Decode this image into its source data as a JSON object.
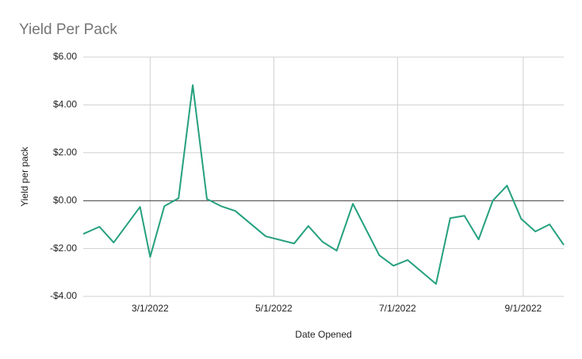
{
  "chart_data": {
    "type": "line",
    "title": "Yield Per Pack",
    "x_label": "Date Opened",
    "y_label": "Yield per pack",
    "x": [
      "2022-01-27",
      "2022-02-04",
      "2022-02-11",
      "2022-02-24",
      "2022-03-01",
      "2022-03-08",
      "2022-03-15",
      "2022-03-22",
      "2022-03-29",
      "2022-04-05",
      "2022-04-12",
      "2022-04-27",
      "2022-05-11",
      "2022-05-18",
      "2022-05-25",
      "2022-06-01",
      "2022-06-09",
      "2022-06-22",
      "2022-06-29",
      "2022-07-06",
      "2022-07-20",
      "2022-07-27",
      "2022-08-03",
      "2022-08-10",
      "2022-08-17",
      "2022-08-24",
      "2022-08-31",
      "2022-09-07",
      "2022-09-14",
      "2022-09-21"
    ],
    "values": [
      -1.39,
      -1.09,
      -1.75,
      -0.26,
      -2.35,
      -0.23,
      0.1,
      4.83,
      0.07,
      -0.23,
      -0.43,
      -1.49,
      -1.79,
      -1.06,
      -1.72,
      -2.09,
      -0.13,
      -2.28,
      -2.72,
      -2.48,
      -3.48,
      -0.73,
      -0.63,
      -1.62,
      0,
      0.63,
      -0.76,
      -1.29,
      -0.99,
      -1.85
    ],
    "color": "#26a07f",
    "xlim": [
      "2022-01-27",
      "2022-09-21"
    ],
    "xticks": [
      {
        "value": "2022-03-01",
        "label": "3/1/2022"
      },
      {
        "value": "2022-05-01",
        "label": "5/1/2022"
      },
      {
        "value": "2022-07-01",
        "label": "7/1/2022"
      },
      {
        "value": "2022-09-01",
        "label": "9/1/2022"
      }
    ],
    "ylim": [
      -4,
      6
    ],
    "yticks": [
      {
        "value": -4,
        "label": "-$4.00"
      },
      {
        "value": -2,
        "label": "-$2.00"
      },
      {
        "value": 0,
        "label": "$0.00"
      },
      {
        "value": 2,
        "label": "$2.00"
      },
      {
        "value": 4,
        "label": "$4.00"
      },
      {
        "value": 6,
        "label": "$6.00"
      }
    ],
    "grid": true
  }
}
